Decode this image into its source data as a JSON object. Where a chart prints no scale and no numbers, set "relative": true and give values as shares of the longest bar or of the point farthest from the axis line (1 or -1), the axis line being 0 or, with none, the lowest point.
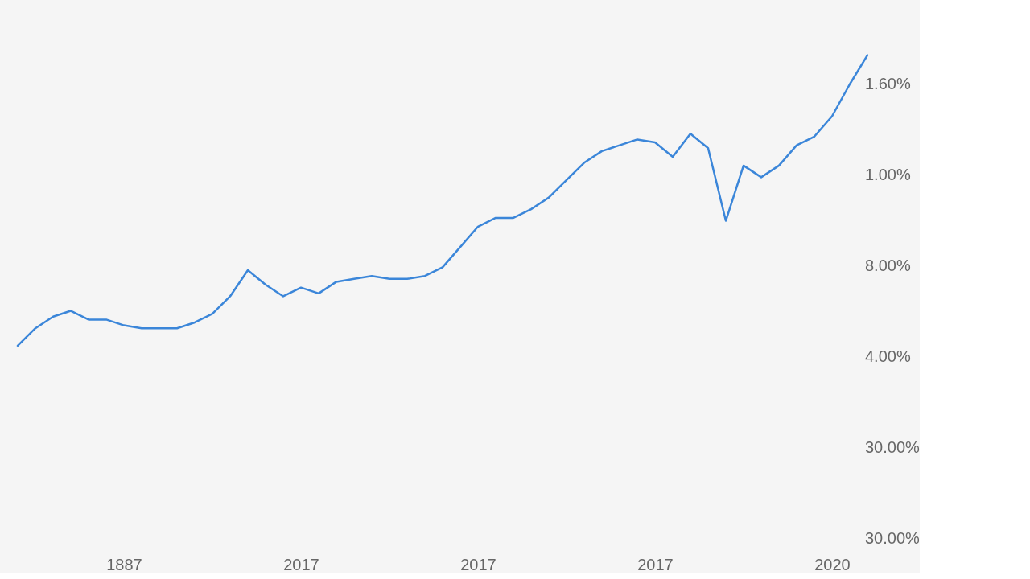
{
  "chart_data": {
    "type": "line",
    "relative": true,
    "categories": [
      null,
      null,
      null,
      null,
      null,
      null,
      "1887",
      null,
      null,
      null,
      null,
      null,
      null,
      null,
      null,
      null,
      "2017",
      null,
      null,
      null,
      null,
      null,
      null,
      null,
      null,
      null,
      "2017",
      null,
      null,
      null,
      null,
      null,
      null,
      null,
      null,
      null,
      "2017",
      null,
      null,
      null,
      null,
      null,
      null,
      null,
      null,
      null,
      "2020",
      null,
      null
    ],
    "series": [
      {
        "color": "#3b86d9",
        "values": [
          0,
          0.06,
          0.1,
          0.12,
          0.09,
          0.09,
          0.07,
          0.06,
          0.06,
          0.06,
          0.08,
          0.11,
          0.17,
          0.26,
          0.21,
          0.17,
          0.2,
          0.18,
          0.22,
          0.23,
          0.24,
          0.23,
          0.23,
          0.24,
          0.27,
          0.34,
          0.41,
          0.44,
          0.44,
          0.47,
          0.51,
          0.57,
          0.63,
          0.67,
          0.69,
          0.71,
          0.7,
          0.65,
          0.73,
          0.68,
          0.43,
          0.62,
          0.58,
          0.62,
          0.69,
          0.72,
          0.79,
          0.9,
          1.0
        ]
      }
    ],
    "annotations": [
      "1.60%",
      "1.00%",
      "8.00%",
      "4.00%",
      "30.00%",
      "30.00%"
    ],
    "grid": false
  }
}
